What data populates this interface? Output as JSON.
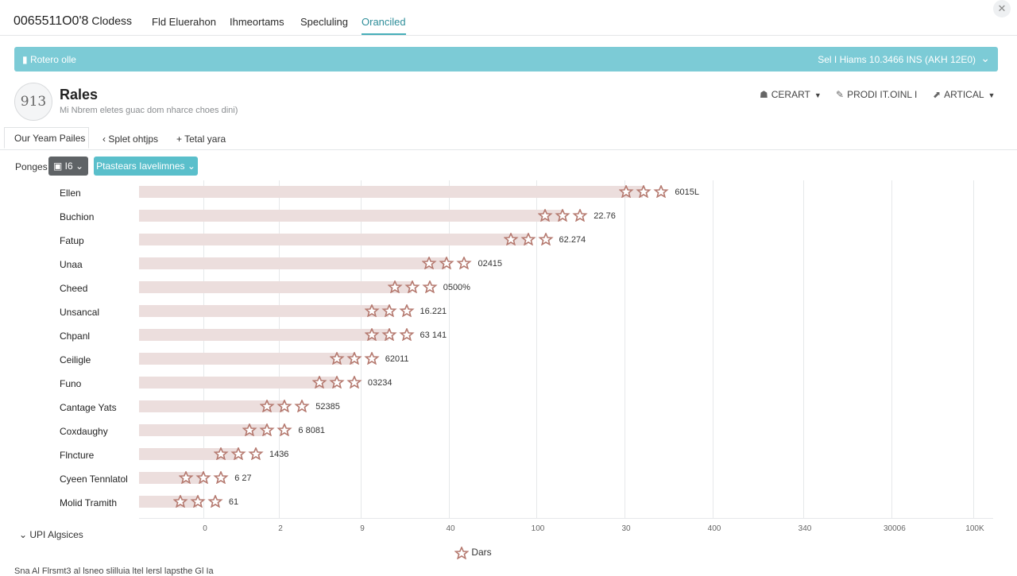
{
  "app": {
    "brand": "0065511O0'8",
    "brand_suffix": "Clodess"
  },
  "nav": {
    "tabs": [
      "Fld Eluerahon",
      "Ihmeortams",
      "Specluling",
      "Oranciled"
    ],
    "active_index": 3
  },
  "banner": {
    "left_text": "Rotero olle",
    "right_text": "Sel I Hiams 10.3466 INS (AKH 12E0)"
  },
  "header": {
    "logo_text": "913",
    "title": "Rales",
    "subtitle": "Mi Nbrem eletes guac dom nharce choes dini)",
    "buttons": {
      "cerart": "CERART",
      "product": "PRODI IT.OINL I",
      "artical": "ARTICAL"
    }
  },
  "subtabs": {
    "active": "Our Yeam Pailes",
    "split": "Splet ohtjps",
    "total": "Tetal yara"
  },
  "filters": {
    "label": "Ponges",
    "dark_button": "I6",
    "teal_button": "Ptastears Iavelimnes"
  },
  "chart_data": {
    "type": "bar",
    "orientation": "horizontal",
    "categories": [
      "Ellen",
      "Buchion",
      "Fatup",
      "Unaa",
      "Cheed",
      "Unsancal",
      "Chpanl",
      "Ceiligle",
      "Funo",
      "Cantage Yats",
      "Coxdaughy",
      "Flncture",
      "Cyeen Tennlatol",
      "Molid Tramith"
    ],
    "values": [
      87,
      73,
      67,
      53,
      47,
      43,
      43,
      37,
      34,
      25,
      22,
      17,
      11,
      10
    ],
    "value_labels": [
      "6015L",
      "22.76",
      "62.274",
      "02415",
      "0500%",
      "16.221",
      "63 141",
      "62011",
      "03234",
      "52385",
      "6 8081",
      "1436",
      "6 27",
      "61"
    ],
    "x_tick_labels": [
      "0",
      "2",
      "9",
      "40",
      "100",
      "30",
      "400",
      "340",
      "30006",
      "100K"
    ],
    "xlim": [
      0,
      144
    ],
    "grid": true,
    "legend": {
      "entries": [
        "Dars"
      ],
      "position": "bottom"
    },
    "marker_color": "#b5796f",
    "bar_color": "#ecdedd"
  },
  "footer": {
    "collapsible_label": "UPI Algsices",
    "bottom_text": "Sna Al Flrsmt3 al lsneo slilluia ltel lersl lapsthe Gl Ia"
  }
}
